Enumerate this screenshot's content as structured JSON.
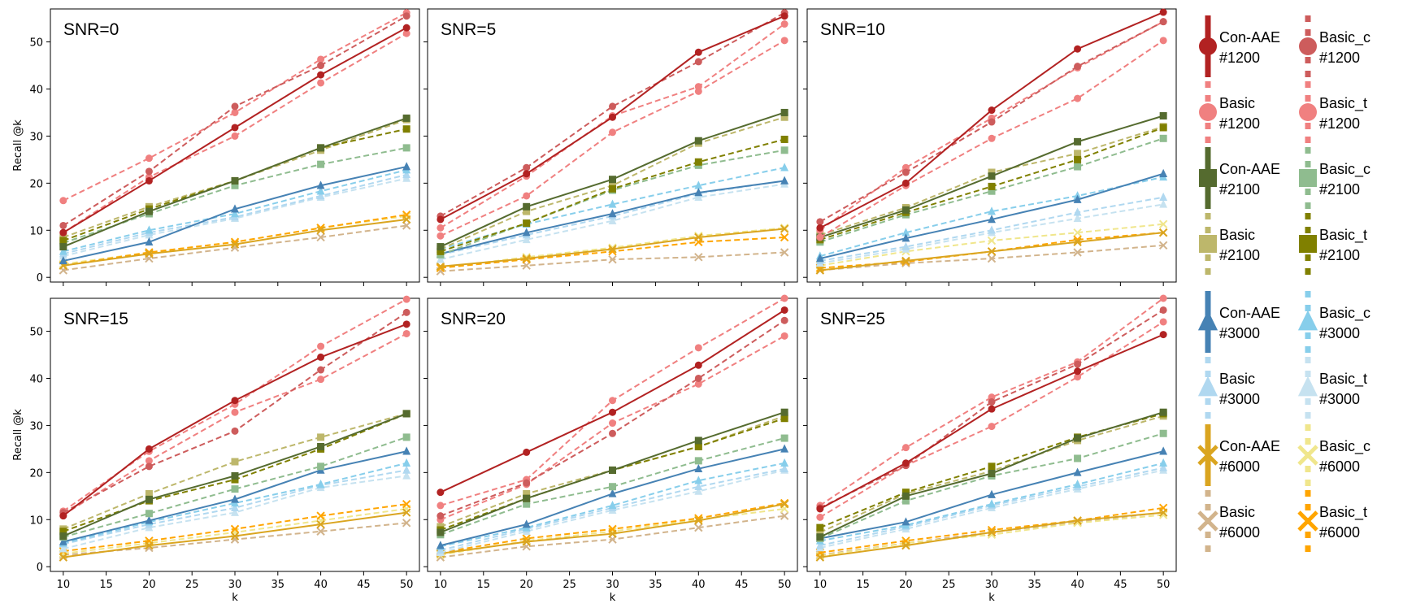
{
  "chart_data": {
    "type": "line",
    "x": [
      10,
      20,
      30,
      40,
      50
    ],
    "xlabel": "k",
    "ylabel": "Recall @k",
    "xlim": [
      8.5,
      51.5
    ],
    "ylim": [
      -1,
      57
    ],
    "xticks": [
      10,
      15,
      20,
      25,
      30,
      35,
      40,
      45,
      50
    ],
    "yticks": [
      0,
      10,
      20,
      30,
      40,
      50
    ],
    "grid": false,
    "legend_position": "right",
    "series_styles": [
      {
        "key": "cr_1200",
        "color": "#b22222",
        "marker": "circle",
        "dash": false
      },
      {
        "key": "bc_1200",
        "color": "#cd5c5c",
        "marker": "circle",
        "dash": true
      },
      {
        "key": "b_1200",
        "color": "#f08080",
        "marker": "circle",
        "dash": true
      },
      {
        "key": "bt_1200",
        "color": "#f08080",
        "marker": "circle",
        "dash": true
      },
      {
        "key": "cr_2100",
        "color": "#556b2f",
        "marker": "square",
        "dash": false
      },
      {
        "key": "bc_2100",
        "color": "#8fbc8f",
        "marker": "square",
        "dash": true
      },
      {
        "key": "b_2100",
        "color": "#bdb76b",
        "marker": "square",
        "dash": true
      },
      {
        "key": "bt_2100",
        "color": "#808000",
        "marker": "square",
        "dash": true
      },
      {
        "key": "cr_3000",
        "color": "#4682b4",
        "marker": "triangle",
        "dash": false
      },
      {
        "key": "bc_3000",
        "color": "#87ceeb",
        "marker": "triangle",
        "dash": true
      },
      {
        "key": "b_3000",
        "color": "#b0d8f0",
        "marker": "triangle",
        "dash": true
      },
      {
        "key": "bt_3000",
        "color": "#c6e2f0",
        "marker": "triangle",
        "dash": true
      },
      {
        "key": "cr_6000",
        "color": "#daa520",
        "marker": "x",
        "dash": false
      },
      {
        "key": "bc_6000",
        "color": "#f0e68c",
        "marker": "x",
        "dash": true
      },
      {
        "key": "b_6000",
        "color": "#d2b48c",
        "marker": "x",
        "dash": true
      },
      {
        "key": "bt_6000",
        "color": "#ffa500",
        "marker": "x",
        "dash": true
      }
    ],
    "panels": [
      {
        "title": "SNR=0",
        "series": {
          "cr_1200": [
            9.5,
            20.5,
            31.8,
            43.0,
            53.0
          ],
          "bc_1200": [
            11.0,
            22.5,
            36.3,
            45.0,
            55.5
          ],
          "b_1200": [
            16.3,
            25.3,
            35.0,
            46.3,
            56.2
          ],
          "bt_1200": [
            9.5,
            21.3,
            30.0,
            41.3,
            51.8
          ],
          "cr_2100": [
            6.5,
            14.0,
            20.5,
            27.5,
            33.8
          ],
          "bc_2100": [
            7.3,
            13.5,
            19.5,
            24.0,
            27.5
          ],
          "b_2100": [
            8.5,
            15.0,
            20.5,
            27.0,
            33.5
          ],
          "bt_2100": [
            7.8,
            14.5,
            20.5,
            27.5,
            31.5
          ],
          "cr_3000": [
            3.5,
            7.5,
            14.5,
            19.5,
            23.5
          ],
          "bc_3000": [
            5.5,
            10.0,
            13.5,
            18.3,
            22.8
          ],
          "b_3000": [
            5.0,
            9.5,
            12.8,
            17.3,
            21.8
          ],
          "bt_3000": [
            4.5,
            9.0,
            12.5,
            17.0,
            21.0
          ],
          "cr_6000": [
            2.5,
            5.0,
            7.0,
            10.0,
            12.3
          ],
          "bc_6000": [
            2.8,
            5.3,
            7.5,
            10.5,
            13.0
          ],
          "b_6000": [
            1.5,
            4.0,
            6.3,
            8.5,
            11.0
          ],
          "bt_6000": [
            2.5,
            5.3,
            7.5,
            10.5,
            13.3
          ]
        }
      },
      {
        "title": "SNR=5",
        "series": {
          "cr_1200": [
            12.3,
            22.0,
            34.0,
            47.8,
            55.5
          ],
          "bc_1200": [
            13.0,
            23.3,
            36.3,
            45.8,
            56.2
          ],
          "b_1200": [
            10.5,
            21.5,
            34.3,
            40.5,
            53.8
          ],
          "bt_1200": [
            8.8,
            17.3,
            30.8,
            39.5,
            50.3
          ],
          "cr_2100": [
            6.5,
            15.0,
            20.8,
            29.0,
            35.0
          ],
          "bc_2100": [
            4.8,
            11.5,
            18.5,
            23.8,
            27.0
          ],
          "b_2100": [
            6.0,
            14.0,
            19.5,
            28.5,
            34.0
          ],
          "bt_2100": [
            5.5,
            11.5,
            18.8,
            24.5,
            29.3
          ],
          "cr_3000": [
            5.0,
            9.5,
            13.5,
            18.0,
            20.5
          ],
          "bc_3000": [
            6.0,
            11.3,
            15.5,
            19.5,
            23.3
          ],
          "b_3000": [
            4.8,
            9.0,
            13.0,
            17.8,
            20.5
          ],
          "bt_3000": [
            3.8,
            8.0,
            12.0,
            17.0,
            19.8
          ],
          "cr_6000": [
            2.3,
            4.0,
            6.0,
            8.5,
            10.3
          ],
          "bc_6000": [
            2.0,
            4.3,
            6.3,
            8.8,
            10.5
          ],
          "b_6000": [
            1.3,
            2.5,
            3.8,
            4.3,
            5.3
          ],
          "bt_6000": [
            2.0,
            3.8,
            5.5,
            7.5,
            8.5
          ]
        }
      },
      {
        "title": "SNR=10",
        "series": {
          "cr_1200": [
            10.5,
            20.0,
            35.5,
            48.5,
            56.3
          ],
          "bc_1200": [
            11.8,
            22.3,
            33.0,
            44.8,
            54.3
          ],
          "b_1200": [
            10.0,
            23.3,
            33.8,
            44.5,
            54.3
          ],
          "bt_1200": [
            8.5,
            19.5,
            29.5,
            38.0,
            50.3
          ],
          "cr_2100": [
            8.5,
            14.3,
            21.5,
            28.8,
            34.3
          ],
          "bc_2100": [
            7.5,
            13.3,
            18.3,
            23.5,
            29.5
          ],
          "b_2100": [
            9.0,
            14.8,
            22.3,
            26.3,
            32.0
          ],
          "bt_2100": [
            8.0,
            13.8,
            19.3,
            25.0,
            31.8
          ],
          "cr_3000": [
            4.0,
            8.3,
            12.3,
            16.5,
            22.0
          ],
          "bc_3000": [
            4.5,
            9.5,
            14.0,
            17.3,
            21.3
          ],
          "b_3000": [
            3.5,
            6.5,
            10.0,
            13.8,
            17.0
          ],
          "bt_3000": [
            3.0,
            6.0,
            9.5,
            12.5,
            15.5
          ],
          "cr_6000": [
            1.5,
            3.5,
            5.5,
            7.5,
            9.5
          ],
          "bc_6000": [
            2.5,
            5.5,
            7.8,
            9.5,
            11.3
          ],
          "b_6000": [
            1.5,
            3.0,
            4.0,
            5.3,
            6.8
          ],
          "bt_6000": [
            2.0,
            3.3,
            5.5,
            8.0,
            9.5
          ]
        }
      },
      {
        "title": "SNR=15",
        "series": {
          "cr_1200": [
            10.8,
            25.0,
            35.3,
            44.5,
            51.5
          ],
          "bc_1200": [
            11.5,
            21.3,
            28.8,
            41.8,
            54.0
          ],
          "b_1200": [
            11.8,
            24.5,
            34.5,
            46.8,
            56.8
          ],
          "bt_1200": [
            11.0,
            22.5,
            32.8,
            39.8,
            49.5
          ],
          "cr_2100": [
            6.5,
            14.3,
            19.3,
            25.5,
            32.5
          ],
          "bc_2100": [
            6.3,
            11.3,
            16.5,
            21.3,
            27.5
          ],
          "b_2100": [
            8.0,
            15.5,
            22.3,
            27.5,
            32.5
          ],
          "bt_2100": [
            7.5,
            14.0,
            18.5,
            25.0,
            32.5
          ],
          "cr_3000": [
            5.3,
            9.8,
            14.3,
            20.5,
            24.5
          ],
          "bc_3000": [
            5.0,
            9.5,
            13.5,
            17.5,
            22.0
          ],
          "b_3000": [
            4.8,
            9.0,
            12.5,
            17.3,
            20.5
          ],
          "bt_3000": [
            3.8,
            8.3,
            11.5,
            16.8,
            19.3
          ],
          "cr_6000": [
            2.0,
            4.5,
            6.5,
            9.0,
            11.5
          ],
          "bc_6000": [
            2.8,
            5.0,
            7.3,
            9.8,
            12.3
          ],
          "b_6000": [
            2.5,
            4.0,
            5.8,
            7.5,
            9.3
          ],
          "bt_6000": [
            3.3,
            5.5,
            8.0,
            10.8,
            13.3
          ]
        }
      },
      {
        "title": "SNR=20",
        "series": {
          "cr_1200": [
            15.8,
            24.3,
            32.8,
            42.8,
            54.5
          ],
          "bc_1200": [
            10.8,
            17.8,
            28.3,
            40.0,
            52.3
          ],
          "b_1200": [
            13.0,
            18.5,
            35.3,
            46.5,
            57.0
          ],
          "bt_1200": [
            10.0,
            17.5,
            30.5,
            38.8,
            49.0
          ],
          "cr_2100": [
            7.3,
            14.5,
            20.5,
            26.8,
            32.8
          ],
          "bc_2100": [
            6.8,
            13.3,
            17.0,
            22.5,
            27.3
          ],
          "b_2100": [
            8.5,
            15.5,
            20.5,
            25.5,
            32.0
          ],
          "bt_2100": [
            7.8,
            14.5,
            20.5,
            25.5,
            31.5
          ],
          "cr_3000": [
            4.5,
            9.0,
            15.5,
            20.8,
            25.0
          ],
          "bc_3000": [
            4.3,
            8.3,
            13.0,
            18.3,
            22.0
          ],
          "b_3000": [
            3.5,
            8.0,
            12.5,
            17.0,
            20.8
          ],
          "bt_3000": [
            3.0,
            7.5,
            12.0,
            16.0,
            20.5
          ],
          "cr_6000": [
            2.8,
            5.3,
            7.0,
            9.8,
            13.3
          ],
          "bc_6000": [
            2.5,
            5.5,
            7.5,
            10.0,
            12.3
          ],
          "b_6000": [
            2.0,
            4.3,
            5.8,
            8.3,
            10.8
          ],
          "bt_6000": [
            3.0,
            6.0,
            8.0,
            10.3,
            13.5
          ]
        }
      },
      {
        "title": "SNR=25",
        "series": {
          "cr_1200": [
            12.3,
            22.0,
            33.5,
            41.5,
            49.3
          ],
          "bc_1200": [
            12.5,
            21.5,
            35.0,
            43.0,
            54.5
          ],
          "b_1200": [
            13.0,
            25.3,
            36.0,
            43.5,
            57.0
          ],
          "bt_1200": [
            10.5,
            21.5,
            29.8,
            40.3,
            52.0
          ],
          "cr_2100": [
            6.3,
            15.0,
            19.8,
            27.3,
            32.8
          ],
          "bc_2100": [
            6.0,
            14.0,
            19.3,
            23.0,
            28.3
          ],
          "b_2100": [
            7.3,
            15.5,
            20.3,
            26.8,
            32.0
          ],
          "bt_2100": [
            8.3,
            15.8,
            21.3,
            27.5,
            32.5
          ],
          "cr_3000": [
            6.0,
            9.5,
            15.3,
            20.0,
            24.5
          ],
          "bc_3000": [
            5.5,
            8.8,
            13.3,
            17.5,
            22.0
          ],
          "b_3000": [
            4.5,
            8.5,
            13.0,
            17.0,
            21.0
          ],
          "bt_3000": [
            4.0,
            8.0,
            12.5,
            16.5,
            20.5
          ],
          "cr_6000": [
            2.0,
            4.5,
            7.3,
            9.8,
            11.5
          ],
          "bc_6000": [
            2.3,
            5.0,
            6.8,
            9.3,
            11.0
          ],
          "b_6000": [
            2.5,
            5.0,
            7.3,
            9.5,
            11.5
          ],
          "bt_6000": [
            3.0,
            5.5,
            7.8,
            9.8,
            12.5
          ]
        }
      }
    ],
    "legend": [
      {
        "key": "cr_1200",
        "line1": "Con-AAE",
        "line2": "#1200"
      },
      {
        "key": "bc_1200",
        "line1": "Basic_c",
        "line2": "#1200"
      },
      {
        "key": "b_1200",
        "line1": "Basic",
        "line2": "#1200"
      },
      {
        "key": "bt_1200",
        "line1": "Basic_t",
        "line2": "#1200"
      },
      {
        "key": "cr_2100",
        "line1": "Con-AAE",
        "line2": "#2100"
      },
      {
        "key": "bc_2100",
        "line1": "Basic_c",
        "line2": "#2100"
      },
      {
        "key": "b_2100",
        "line1": "Basic",
        "line2": "#2100"
      },
      {
        "key": "bt_2100",
        "line1": "Basic_t",
        "line2": "#2100"
      },
      {
        "key": "cr_3000",
        "line1": "Con-AAE",
        "line2": "#3000"
      },
      {
        "key": "bc_3000",
        "line1": "Basic_c",
        "line2": "#3000"
      },
      {
        "key": "b_3000",
        "line1": "Basic",
        "line2": "#3000"
      },
      {
        "key": "bt_3000",
        "line1": "Basic_t",
        "line2": "#3000"
      },
      {
        "key": "cr_6000",
        "line1": "Con-AAE",
        "line2": "#6000"
      },
      {
        "key": "bc_6000",
        "line1": "Basic_c",
        "line2": "#6000"
      },
      {
        "key": "b_6000",
        "line1": "Basic",
        "line2": "#6000"
      },
      {
        "key": "bt_6000",
        "line1": "Basic_t",
        "line2": "#6000"
      }
    ]
  }
}
